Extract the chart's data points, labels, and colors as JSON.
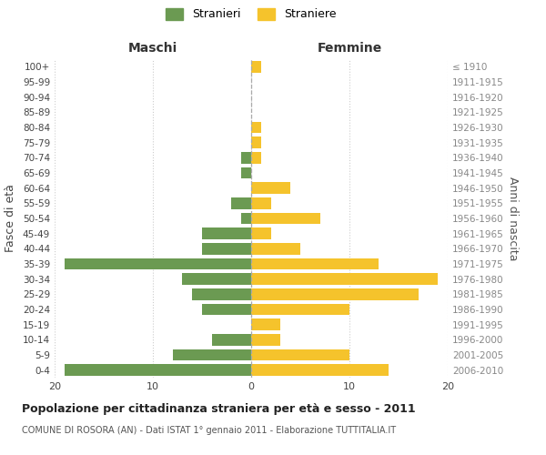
{
  "age_groups": [
    "0-4",
    "5-9",
    "10-14",
    "15-19",
    "20-24",
    "25-29",
    "30-34",
    "35-39",
    "40-44",
    "45-49",
    "50-54",
    "55-59",
    "60-64",
    "65-69",
    "70-74",
    "75-79",
    "80-84",
    "85-89",
    "90-94",
    "95-99",
    "100+"
  ],
  "birth_years": [
    "2006-2010",
    "2001-2005",
    "1996-2000",
    "1991-1995",
    "1986-1990",
    "1981-1985",
    "1976-1980",
    "1971-1975",
    "1966-1970",
    "1961-1965",
    "1956-1960",
    "1951-1955",
    "1946-1950",
    "1941-1945",
    "1936-1940",
    "1931-1935",
    "1926-1930",
    "1921-1925",
    "1916-1920",
    "1911-1915",
    "≤ 1910"
  ],
  "maschi": [
    19,
    8,
    4,
    0,
    5,
    6,
    7,
    19,
    5,
    5,
    1,
    2,
    0,
    1,
    1,
    0,
    0,
    0,
    0,
    0,
    0
  ],
  "femmine": [
    14,
    10,
    3,
    3,
    10,
    17,
    19,
    13,
    5,
    2,
    7,
    2,
    4,
    0,
    1,
    1,
    1,
    0,
    0,
    0,
    1
  ],
  "color_maschi": "#6b9a52",
  "color_femmine": "#f5c32c",
  "background_color": "#ffffff",
  "grid_color": "#cccccc",
  "title": "Popolazione per cittadinanza straniera per età e sesso - 2011",
  "subtitle": "COMUNE DI ROSORA (AN) - Dati ISTAT 1° gennaio 2011 - Elaborazione TUTTITALIA.IT",
  "xlabel_left": "Maschi",
  "xlabel_right": "Femmine",
  "ylabel_left": "Fasce di età",
  "ylabel_right": "Anni di nascita",
  "legend_maschi": "Stranieri",
  "legend_femmine": "Straniere",
  "xlim": 20
}
